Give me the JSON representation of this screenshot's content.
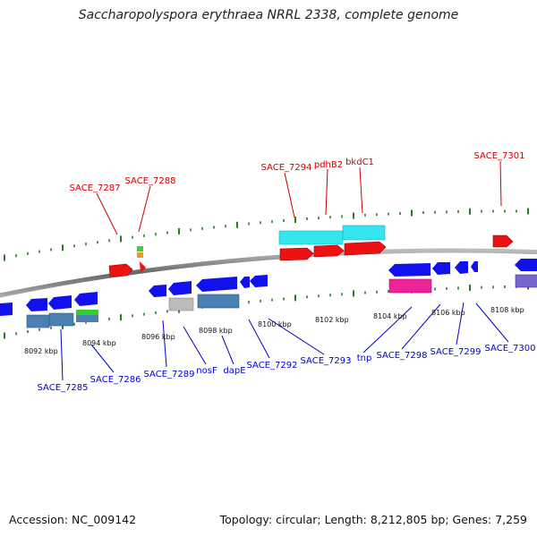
{
  "title": "Saccharopolyspora erythraea NRRL 2338, complete genome",
  "accession": "Accession: NC_009142",
  "topology": "Topology: circular; Length: 8,212,805 bp; Genes: 7,259",
  "colors": {
    "forward_label": "#cc0000",
    "reverse_label": "#0000cc",
    "forward_gene": "#ee0000",
    "reverse_gene": "#0000ee",
    "tick": "#2a7a2a",
    "backbone": "#888888"
  },
  "scale_labels": [
    "8092 kbp",
    "8094 kbp",
    "8096 kbp",
    "8098 kbp",
    "8100 kbp",
    "8102 kbp",
    "8104 kbp",
    "8106 kbp",
    "8108 kbp"
  ],
  "forward_labels": [
    "SACE_7287",
    "SACE_7288",
    "SACE_7294",
    "pdhB2",
    "bkdC1",
    "SACE_7301"
  ],
  "reverse_labels": [
    "SACE_7285",
    "SACE_7286",
    "SACE_7289",
    "nosF",
    "dapE",
    "SACE_7292",
    "SACE_7293",
    "tnp",
    "SACE_7298",
    "SACE_7299",
    "SACE_7300"
  ]
}
